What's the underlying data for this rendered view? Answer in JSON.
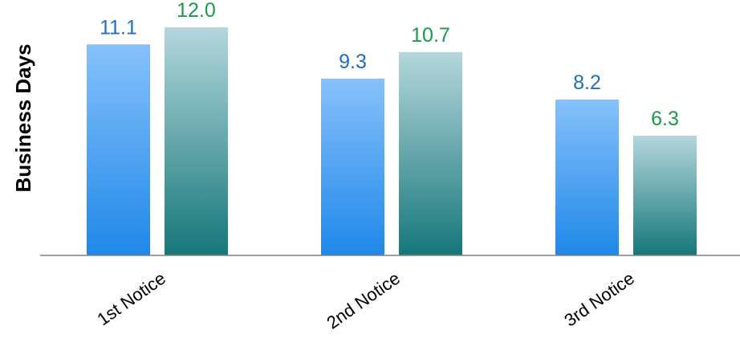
{
  "chart_data": {
    "type": "bar",
    "title": "",
    "xlabel": "",
    "ylabel": "Business Days",
    "categories": [
      "1st Notice",
      "2nd Notice",
      "3rd Notice"
    ],
    "series": [
      {
        "values": [
          11.1,
          9.3,
          8.2
        ],
        "label_color": "#1f6fc0",
        "color_top": "#86c1fb",
        "color_bottom": "#1f88e8"
      },
      {
        "values": [
          12.0,
          10.7,
          6.3
        ],
        "label_color": "#1a9a4a",
        "color_top": "#b4d7dc",
        "color_bottom": "#15777a"
      }
    ],
    "data_labels": [
      [
        "11.1",
        "9.3",
        "8.2"
      ],
      [
        "12.0",
        "10.7",
        "6.3"
      ]
    ],
    "ylim": [
      0,
      12.0
    ],
    "grid": false,
    "legend": "none",
    "axis_color": "#808080"
  }
}
